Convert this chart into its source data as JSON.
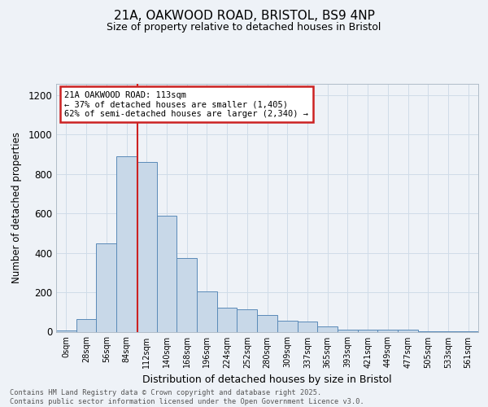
{
  "title1": "21A, OAKWOOD ROAD, BRISTOL, BS9 4NP",
  "title2": "Size of property relative to detached houses in Bristol",
  "xlabel": "Distribution of detached houses by size in Bristol",
  "ylabel": "Number of detached properties",
  "bin_labels": [
    "0sqm",
    "28sqm",
    "56sqm",
    "84sqm",
    "112sqm",
    "140sqm",
    "168sqm",
    "196sqm",
    "224sqm",
    "252sqm",
    "280sqm",
    "309sqm",
    "337sqm",
    "365sqm",
    "393sqm",
    "421sqm",
    "449sqm",
    "477sqm",
    "505sqm",
    "533sqm",
    "561sqm"
  ],
  "bar_values": [
    5,
    65,
    450,
    890,
    860,
    590,
    375,
    205,
    120,
    115,
    85,
    55,
    50,
    25,
    12,
    10,
    12,
    10,
    3,
    2,
    2
  ],
  "bar_color": "#c8d8e8",
  "bar_edge_color": "#5a8ab8",
  "grid_color": "#d0dce8",
  "property_line_color": "#cc2222",
  "annotation_text": "21A OAKWOOD ROAD: 113sqm\n← 37% of detached houses are smaller (1,405)\n62% of semi-detached houses are larger (2,340) →",
  "annotation_box_facecolor": "#ffffff",
  "annotation_box_edgecolor": "#cc2222",
  "ylim": [
    0,
    1260
  ],
  "yticks": [
    0,
    200,
    400,
    600,
    800,
    1000,
    1200
  ],
  "footer_text": "Contains HM Land Registry data © Crown copyright and database right 2025.\nContains public sector information licensed under the Open Government Licence v3.0.",
  "bg_color": "#eef2f7"
}
